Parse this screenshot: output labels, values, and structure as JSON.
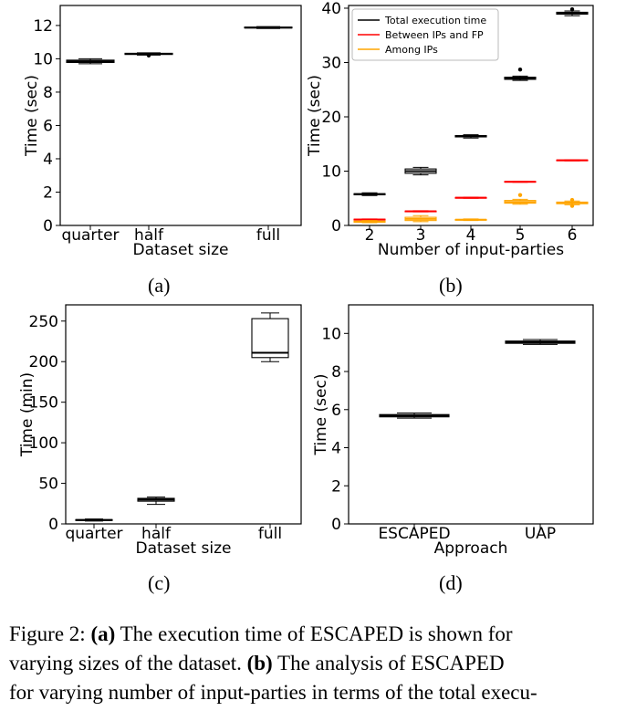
{
  "chart_data": [
    {
      "type": "box",
      "panel_label": "(a)",
      "xlabel": "Dataset size",
      "ylabel": "Time (sec)",
      "ylim": [
        0,
        13.2
      ],
      "yticks": [
        0,
        2,
        4,
        6,
        8,
        10,
        12
      ],
      "categories": [
        "quarter",
        "half",
        "full"
      ],
      "boxes": [
        {
          "category": "quarter",
          "min": 9.7,
          "q1": 9.78,
          "median": 9.85,
          "q3": 9.92,
          "max": 10.0,
          "outliers": []
        },
        {
          "category": "half",
          "min": 10.22,
          "q1": 10.26,
          "median": 10.3,
          "q3": 10.33,
          "max": 10.36,
          "outliers": [
            10.2
          ]
        },
        {
          "category": "full",
          "min": 11.82,
          "q1": 11.85,
          "median": 11.87,
          "q3": 11.9,
          "max": 11.93,
          "outliers": []
        }
      ]
    },
    {
      "type": "box",
      "panel_label": "(b)",
      "xlabel": "Number of input-parties",
      "ylabel": "Time (sec)",
      "ylim": [
        0,
        40.5
      ],
      "yticks": [
        0,
        10,
        20,
        30,
        40
      ],
      "categories": [
        "2",
        "3",
        "4",
        "5",
        "6"
      ],
      "legend_position": "top-left",
      "series": [
        {
          "name": "Total execution time",
          "color": "#000000",
          "boxes": [
            {
              "min": 5.5,
              "q1": 5.65,
              "median": 5.75,
              "q3": 5.85,
              "max": 6.0,
              "outliers": []
            },
            {
              "min": 9.3,
              "q1": 9.6,
              "median": 10.0,
              "q3": 10.4,
              "max": 10.7,
              "outliers": []
            },
            {
              "min": 16.1,
              "q1": 16.3,
              "median": 16.4,
              "q3": 16.55,
              "max": 16.7,
              "outliers": []
            },
            {
              "min": 26.7,
              "q1": 26.9,
              "median": 27.1,
              "q3": 27.3,
              "max": 27.5,
              "outliers": [
                28.7
              ]
            },
            {
              "min": 38.6,
              "q1": 38.9,
              "median": 39.05,
              "q3": 39.25,
              "max": 39.5,
              "outliers": [
                39.8
              ]
            }
          ]
        },
        {
          "name": "Between IPs and FP",
          "color": "#ff0000",
          "boxes": [
            {
              "min": 1.0,
              "q1": 1.05,
              "median": 1.1,
              "q3": 1.15,
              "max": 1.2,
              "outliers": []
            },
            {
              "min": 2.5,
              "q1": 2.55,
              "median": 2.6,
              "q3": 2.65,
              "max": 2.7,
              "outliers": []
            },
            {
              "min": 5.0,
              "q1": 5.05,
              "median": 5.1,
              "q3": 5.15,
              "max": 5.2,
              "outliers": []
            },
            {
              "min": 7.95,
              "q1": 8.0,
              "median": 8.05,
              "q3": 8.1,
              "max": 8.15,
              "outliers": []
            },
            {
              "min": 11.9,
              "q1": 11.95,
              "median": 12.0,
              "q3": 12.05,
              "max": 12.1,
              "outliers": []
            }
          ]
        },
        {
          "name": "Among IPs",
          "color": "#ffa500",
          "boxes": [
            {
              "min": 0.5,
              "q1": 0.6,
              "median": 0.7,
              "q3": 0.8,
              "max": 0.9,
              "outliers": []
            },
            {
              "min": 0.7,
              "q1": 0.9,
              "median": 1.2,
              "q3": 1.5,
              "max": 1.8,
              "outliers": []
            },
            {
              "min": 0.9,
              "q1": 1.0,
              "median": 1.05,
              "q3": 1.1,
              "max": 1.2,
              "outliers": []
            },
            {
              "min": 3.9,
              "q1": 4.1,
              "median": 4.3,
              "q3": 4.6,
              "max": 4.8,
              "outliers": [
                5.6
              ]
            },
            {
              "min": 3.8,
              "q1": 4.0,
              "median": 4.15,
              "q3": 4.3,
              "max": 4.5,
              "outliers": [
                3.6,
                4.7
              ]
            }
          ]
        }
      ]
    },
    {
      "type": "box",
      "panel_label": "(c)",
      "xlabel": "Dataset size",
      "ylabel": "Time (min)",
      "ylim": [
        0,
        270
      ],
      "yticks": [
        0,
        50,
        100,
        150,
        200,
        250
      ],
      "categories": [
        "quarter",
        "half",
        "full"
      ],
      "boxes": [
        {
          "category": "quarter",
          "min": 3.5,
          "q1": 4.2,
          "median": 4.8,
          "q3": 5.3,
          "max": 6.0,
          "outliers": []
        },
        {
          "category": "half",
          "min": 24.0,
          "q1": 28.0,
          "median": 30.0,
          "q3": 31.5,
          "max": 33.0,
          "outliers": []
        },
        {
          "category": "full",
          "min": 200.0,
          "q1": 205.0,
          "median": 211.0,
          "q3": 253.0,
          "max": 260.0,
          "outliers": []
        }
      ]
    },
    {
      "type": "box",
      "panel_label": "(d)",
      "xlabel": "Approach",
      "ylabel": "Time (sec)",
      "ylim": [
        0,
        11.5
      ],
      "yticks": [
        0,
        2,
        4,
        6,
        8,
        10
      ],
      "categories": [
        "ESCAPED",
        "UAP"
      ],
      "boxes": [
        {
          "category": "ESCAPED",
          "min": 5.55,
          "q1": 5.62,
          "median": 5.68,
          "q3": 5.74,
          "max": 5.82,
          "outliers": []
        },
        {
          "category": "UAP",
          "min": 9.42,
          "q1": 9.48,
          "median": 9.54,
          "q3": 9.6,
          "max": 9.68,
          "outliers": []
        }
      ]
    }
  ],
  "captions": {
    "a": "(a)",
    "b": "(b)",
    "c": "(c)",
    "d": "(d)"
  },
  "figure_caption": {
    "line1_prefix": "Figure 2: ",
    "line1_label": "(a)",
    "line1_rest": " The execution time of ESCAPED is shown for",
    "line2_prefix": "varying sizes of the dataset. ",
    "line2_label": "(b)",
    "line2_rest": " The analysis of ESCAPED",
    "line3": "for varying number of input-parties in terms of the total execu-"
  }
}
